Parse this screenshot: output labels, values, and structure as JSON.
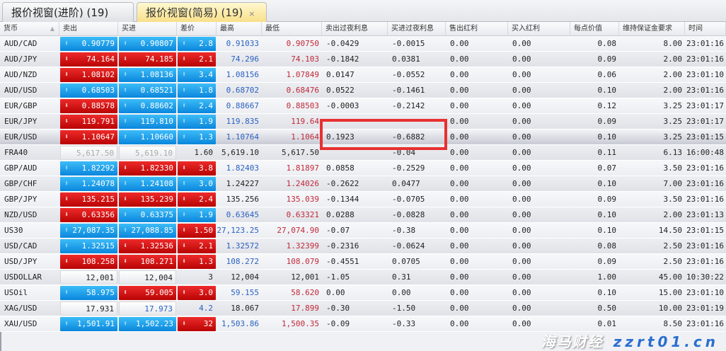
{
  "tabs": [
    {
      "label": "报价视窗(进阶) (19)",
      "active": false
    },
    {
      "label": "报价视窗(简易) (19)",
      "active": true,
      "close": "×"
    }
  ],
  "columns": [
    "货币",
    "卖出",
    "买进",
    "差价",
    "最高",
    "最低",
    "卖出过夜利息",
    "买进过夜利息",
    "售出红利",
    "买入红利",
    "每点价值",
    "维持保证金要求",
    "时间"
  ],
  "sort_indicator": "▲",
  "colors": {
    "up": "#0a86dc",
    "down": "#c00808",
    "high": "#2a60c0",
    "low": "#c02838",
    "highlight_box": "#e83030"
  },
  "selected_row": "EUR/USD",
  "rows": [
    {
      "symbol": "AUD/CAD",
      "bid": {
        "v": "0.90779",
        "dir": "up"
      },
      "ask": {
        "v": "0.90807",
        "dir": "up"
      },
      "spread": {
        "v": "2.8",
        "dir": "up"
      },
      "high": {
        "v": "0.91033",
        "c": "blue"
      },
      "low": {
        "v": "0.90750",
        "c": "red"
      },
      "sswap": "-0.0429",
      "bswap": "-0.0015",
      "sdiv": "0.00",
      "bdiv": "0.00",
      "pv": "0.08",
      "margin": "8.00",
      "time": "23:01:16"
    },
    {
      "symbol": "AUD/JPY",
      "bid": {
        "v": "74.164",
        "dir": "down"
      },
      "ask": {
        "v": "74.185",
        "dir": "down"
      },
      "spread": {
        "v": "2.1",
        "dir": "down"
      },
      "high": {
        "v": "74.296",
        "c": "blue"
      },
      "low": {
        "v": "74.103",
        "c": "red"
      },
      "sswap": "-0.1842",
      "bswap": "0.0381",
      "sdiv": "0.00",
      "bdiv": "0.00",
      "pv": "0.09",
      "margin": "2.00",
      "time": "23:01:16"
    },
    {
      "symbol": "AUD/NZD",
      "bid": {
        "v": "1.08102",
        "dir": "down"
      },
      "ask": {
        "v": "1.08136",
        "dir": "up"
      },
      "spread": {
        "v": "3.4",
        "dir": "up"
      },
      "high": {
        "v": "1.08156",
        "c": "blue"
      },
      "low": {
        "v": "1.07849",
        "c": "red"
      },
      "sswap": "0.0147",
      "bswap": "-0.0552",
      "sdiv": "0.00",
      "bdiv": "0.00",
      "pv": "0.06",
      "margin": "2.00",
      "time": "23:01:10"
    },
    {
      "symbol": "AUD/USD",
      "bid": {
        "v": "0.68503",
        "dir": "up"
      },
      "ask": {
        "v": "0.68521",
        "dir": "up"
      },
      "spread": {
        "v": "1.8",
        "dir": "up"
      },
      "high": {
        "v": "0.68702",
        "c": "blue"
      },
      "low": {
        "v": "0.68476",
        "c": "red"
      },
      "sswap": "0.0522",
      "bswap": "-0.1461",
      "sdiv": "0.00",
      "bdiv": "0.00",
      "pv": "0.10",
      "margin": "2.00",
      "time": "23:01:16"
    },
    {
      "symbol": "EUR/GBP",
      "bid": {
        "v": "0.88578",
        "dir": "down"
      },
      "ask": {
        "v": "0.88602",
        "dir": "up"
      },
      "spread": {
        "v": "2.4",
        "dir": "up"
      },
      "high": {
        "v": "0.88667",
        "c": "blue"
      },
      "low": {
        "v": "0.88503",
        "c": "red"
      },
      "sswap": "-0.0003",
      "bswap": "-0.2142",
      "sdiv": "0.00",
      "bdiv": "0.00",
      "pv": "0.12",
      "margin": "3.25",
      "time": "23:01:17"
    },
    {
      "symbol": "EUR/JPY",
      "bid": {
        "v": "119.791",
        "dir": "down"
      },
      "ask": {
        "v": "119.810",
        "dir": "up"
      },
      "spread": {
        "v": "1.9",
        "dir": "up"
      },
      "high": {
        "v": "119.835",
        "c": "blue"
      },
      "low": {
        "v": "119.64",
        "c": "red"
      },
      "sswap": "",
      "bswap": "",
      "sdiv": "0.00",
      "bdiv": "0.00",
      "pv": "0.09",
      "margin": "3.25",
      "time": "23:01:17"
    },
    {
      "symbol": "EUR/USD",
      "bid": {
        "v": "1.10647",
        "dir": "down"
      },
      "ask": {
        "v": "1.10660",
        "dir": "up"
      },
      "spread": {
        "v": "1.3",
        "dir": "up"
      },
      "high": {
        "v": "1.10764",
        "c": "blue"
      },
      "low": {
        "v": "1.1064",
        "c": "red"
      },
      "sswap": "0.1923",
      "bswap": "-0.6882",
      "sdiv": "0.00",
      "bdiv": "0.00",
      "pv": "0.10",
      "margin": "3.25",
      "time": "23:01:15"
    },
    {
      "symbol": "FRA40",
      "bid": {
        "v": "5,617.50",
        "dir": "none",
        "c": "gray"
      },
      "ask": {
        "v": "5,619.10",
        "dir": "none",
        "c": "gray"
      },
      "spread": {
        "v": "1.60",
        "dir": "plain",
        "c": "black"
      },
      "high": {
        "v": "5,619.10",
        "c": "black"
      },
      "low": {
        "v": "5,617.50",
        "c": "black"
      },
      "sswap": "",
      "bswap": "-0.04",
      "sdiv": "0.00",
      "bdiv": "0.00",
      "pv": "0.11",
      "margin": "6.13",
      "time": "16:00:48"
    },
    {
      "symbol": "GBP/AUD",
      "bid": {
        "v": "1.82292",
        "dir": "up"
      },
      "ask": {
        "v": "1.82330",
        "dir": "down"
      },
      "spread": {
        "v": "3.8",
        "dir": "down"
      },
      "high": {
        "v": "1.82403",
        "c": "blue"
      },
      "low": {
        "v": "1.81897",
        "c": "red"
      },
      "sswap": "0.0858",
      "bswap": "-0.2529",
      "sdiv": "0.00",
      "bdiv": "0.00",
      "pv": "0.07",
      "margin": "3.50",
      "time": "23:01:16"
    },
    {
      "symbol": "GBP/CHF",
      "bid": {
        "v": "1.24078",
        "dir": "up"
      },
      "ask": {
        "v": "1.24108",
        "dir": "up"
      },
      "spread": {
        "v": "3.0",
        "dir": "up"
      },
      "high": {
        "v": "1.24227",
        "c": "black"
      },
      "low": {
        "v": "1.24026",
        "c": "red"
      },
      "sswap": "-0.2622",
      "bswap": "0.0477",
      "sdiv": "0.00",
      "bdiv": "0.00",
      "pv": "0.10",
      "margin": "7.00",
      "time": "23:01:16"
    },
    {
      "symbol": "GBP/JPY",
      "bid": {
        "v": "135.215",
        "dir": "down"
      },
      "ask": {
        "v": "135.239",
        "dir": "down"
      },
      "spread": {
        "v": "2.4",
        "dir": "down"
      },
      "high": {
        "v": "135.256",
        "c": "black"
      },
      "low": {
        "v": "135.039",
        "c": "red"
      },
      "sswap": "-0.1344",
      "bswap": "-0.0705",
      "sdiv": "0.00",
      "bdiv": "0.00",
      "pv": "0.09",
      "margin": "3.50",
      "time": "23:01:16"
    },
    {
      "symbol": "NZD/USD",
      "bid": {
        "v": "0.63356",
        "dir": "down"
      },
      "ask": {
        "v": "0.63375",
        "dir": "up"
      },
      "spread": {
        "v": "1.9",
        "dir": "up"
      },
      "high": {
        "v": "0.63645",
        "c": "blue"
      },
      "low": {
        "v": "0.63321",
        "c": "red"
      },
      "sswap": "0.0288",
      "bswap": "-0.0828",
      "sdiv": "0.00",
      "bdiv": "0.00",
      "pv": "0.10",
      "margin": "2.00",
      "time": "23:01:13"
    },
    {
      "symbol": "US30",
      "bid": {
        "v": "27,087.35",
        "dir": "up"
      },
      "ask": {
        "v": "27,088.85",
        "dir": "up"
      },
      "spread": {
        "v": "1.50",
        "dir": "down"
      },
      "high": {
        "v": "27,123.25",
        "c": "blue"
      },
      "low": {
        "v": "27,074.90",
        "c": "red"
      },
      "sswap": "-0.07",
      "bswap": "-0.38",
      "sdiv": "0.00",
      "bdiv": "0.00",
      "pv": "0.10",
      "margin": "14.50",
      "time": "23:01:15"
    },
    {
      "symbol": "USD/CAD",
      "bid": {
        "v": "1.32515",
        "dir": "up"
      },
      "ask": {
        "v": "1.32536",
        "dir": "down"
      },
      "spread": {
        "v": "2.1",
        "dir": "down"
      },
      "high": {
        "v": "1.32572",
        "c": "blue"
      },
      "low": {
        "v": "1.32399",
        "c": "red"
      },
      "sswap": "-0.2316",
      "bswap": "-0.0624",
      "sdiv": "0.00",
      "bdiv": "0.00",
      "pv": "0.08",
      "margin": "2.50",
      "time": "23:01:16"
    },
    {
      "symbol": "USD/JPY",
      "bid": {
        "v": "108.258",
        "dir": "down"
      },
      "ask": {
        "v": "108.271",
        "dir": "down"
      },
      "spread": {
        "v": "1.3",
        "dir": "down"
      },
      "high": {
        "v": "108.272",
        "c": "blue"
      },
      "low": {
        "v": "108.079",
        "c": "red"
      },
      "sswap": "-0.4551",
      "bswap": "0.0705",
      "sdiv": "0.00",
      "bdiv": "0.00",
      "pv": "0.09",
      "margin": "2.50",
      "time": "23:01:16"
    },
    {
      "symbol": "USDOLLAR",
      "bid": {
        "v": "12,001",
        "dir": "none",
        "c": "black"
      },
      "ask": {
        "v": "12,004",
        "dir": "none",
        "c": "black"
      },
      "spread": {
        "v": "3",
        "dir": "plain",
        "c": "black"
      },
      "high": {
        "v": "12,004",
        "c": "black"
      },
      "low": {
        "v": "12,001",
        "c": "black"
      },
      "sswap": "-1.05",
      "bswap": "0.31",
      "sdiv": "0.00",
      "bdiv": "0.00",
      "pv": "1.00",
      "margin": "45.00",
      "time": "10:30:22"
    },
    {
      "symbol": "USOil",
      "bid": {
        "v": "58.975",
        "dir": "up"
      },
      "ask": {
        "v": "59.005",
        "dir": "down"
      },
      "spread": {
        "v": "3.0",
        "dir": "down"
      },
      "high": {
        "v": "59.155",
        "c": "blue"
      },
      "low": {
        "v": "58.620",
        "c": "red"
      },
      "sswap": "0.00",
      "bswap": "0.00",
      "sdiv": "0.00",
      "bdiv": "0.00",
      "pv": "0.10",
      "margin": "15.00",
      "time": "23:01:10"
    },
    {
      "symbol": "XAG/USD",
      "bid": {
        "v": "17.931",
        "dir": "none",
        "c": "black"
      },
      "ask": {
        "v": "17.973",
        "dir": "none",
        "c": "blue"
      },
      "spread": {
        "v": "4.2",
        "dir": "plain",
        "c": "blue"
      },
      "high": {
        "v": "18.067",
        "c": "black"
      },
      "low": {
        "v": "17.899",
        "c": "red"
      },
      "sswap": "-0.30",
      "bswap": "-1.50",
      "sdiv": "0.00",
      "bdiv": "0.00",
      "pv": "0.50",
      "margin": "10.00",
      "time": "23:01:19"
    },
    {
      "symbol": "XAU/USD",
      "bid": {
        "v": "1,501.91",
        "dir": "up"
      },
      "ask": {
        "v": "1,502.23",
        "dir": "up"
      },
      "spread": {
        "v": "32",
        "dir": "down"
      },
      "high": {
        "v": "1,503.86",
        "c": "blue"
      },
      "low": {
        "v": "1,500.35",
        "c": "red"
      },
      "sswap": "-0.09",
      "bswap": "-0.33",
      "sdiv": "0.00",
      "bdiv": "0.00",
      "pv": "0.01",
      "margin": "8.50",
      "time": "23:01:16"
    }
  ],
  "watermark": {
    "line1": "海马财经",
    "line2": "zzrt01.cn"
  }
}
